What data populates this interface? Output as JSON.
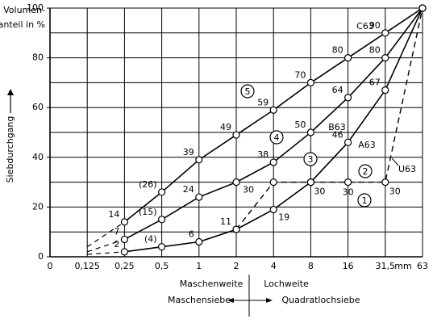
{
  "chart_data": {
    "type": "line",
    "y_title_lines": [
      "Volumen-",
      "anteil in %"
    ],
    "y_axis_label": "Siebdurchgang",
    "x_unit": "mm",
    "categories": [
      "0",
      "0,125",
      "0,25",
      "0,5",
      "1",
      "2",
      "4",
      "8",
      "16",
      "31,5",
      "63"
    ],
    "ylim": [
      0,
      100
    ],
    "yticks": [
      0,
      20,
      40,
      60,
      80,
      100
    ],
    "ygrid": [
      0,
      10,
      20,
      30,
      40,
      50,
      60,
      70,
      80,
      90,
      100
    ],
    "grid": true,
    "series": [
      {
        "name": "C63",
        "color": "#000000",
        "dash": "start",
        "values": [
          null,
          4,
          14,
          26,
          39,
          49,
          59,
          70,
          80,
          90,
          100
        ],
        "value_labels": [
          null,
          null,
          "14",
          "(26)",
          "39",
          "49",
          "59",
          "70",
          "80",
          "90",
          null
        ]
      },
      {
        "name": "B63",
        "color": "#000000",
        "dash": "start",
        "values": [
          null,
          2,
          7,
          15,
          24,
          30,
          38,
          50,
          64,
          80,
          100
        ],
        "value_labels": [
          null,
          null,
          "7",
          "(15)",
          "24",
          "30",
          "38",
          "50",
          "64",
          "80",
          null
        ]
      },
      {
        "name": "A63",
        "color": "#000000",
        "dash": "start",
        "values": [
          null,
          1,
          2,
          4,
          6,
          11,
          19,
          30,
          46,
          67,
          100
        ],
        "value_labels": [
          null,
          null,
          "2",
          "(4)",
          "6",
          "11",
          "19",
          "30",
          "46",
          "67",
          null
        ]
      },
      {
        "name": "U63",
        "color": "#000000",
        "dash": "all",
        "values": [
          null,
          null,
          null,
          null,
          null,
          11,
          30,
          30,
          30,
          30,
          100
        ],
        "value_labels": [
          null,
          null,
          null,
          null,
          null,
          null,
          null,
          null,
          "30",
          "30",
          null
        ]
      }
    ],
    "zones": [
      "1",
      "2",
      "3",
      "4",
      "5"
    ],
    "x_labels": [
      "Maschenweite",
      "Lochweite",
      "Maschensiebe",
      "Quadratlochsiebe"
    ]
  }
}
